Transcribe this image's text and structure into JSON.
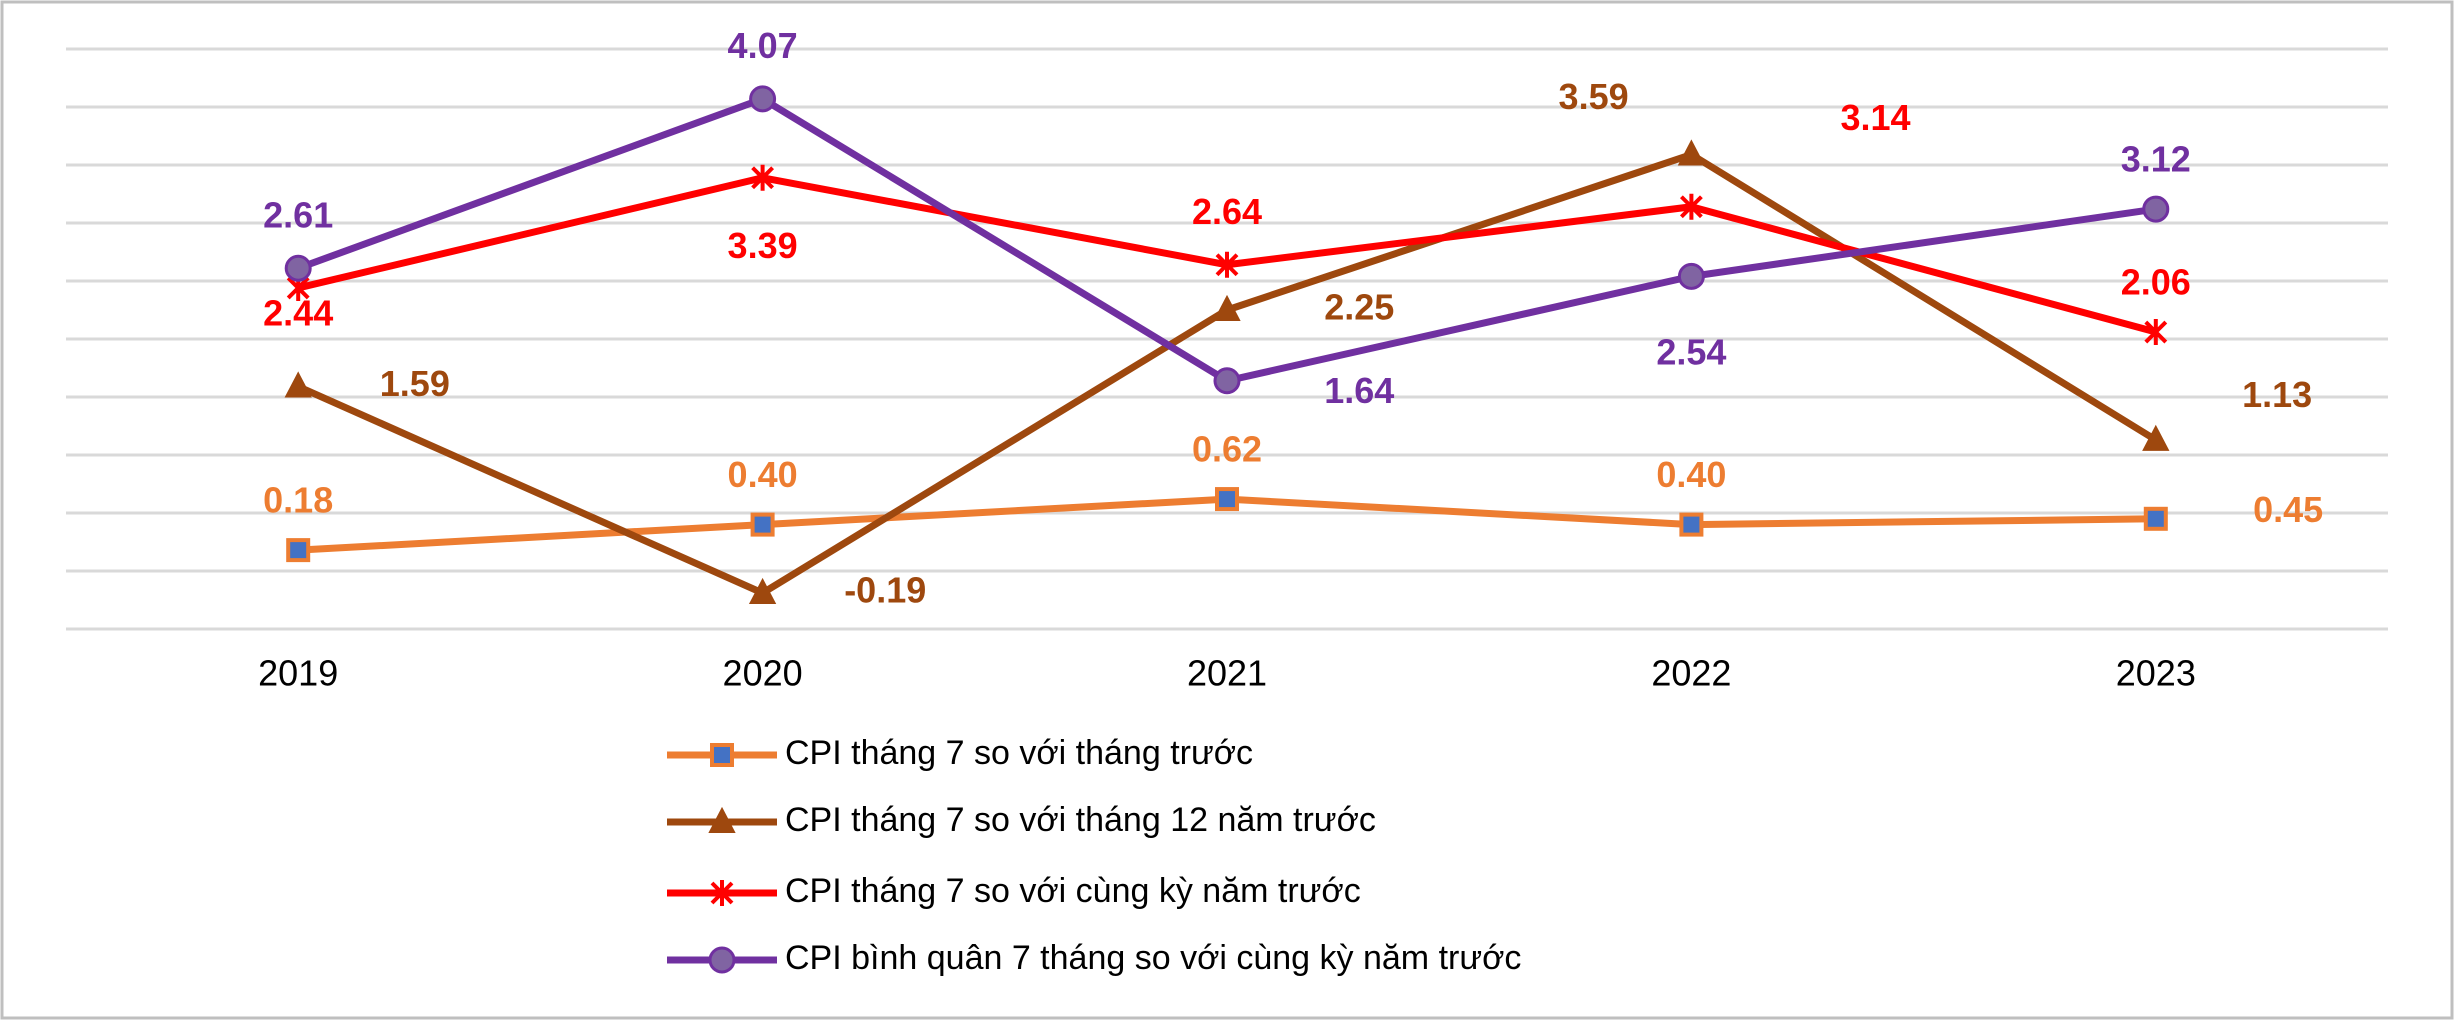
{
  "chart_data": {
    "type": "line",
    "categories": [
      "2019",
      "2020",
      "2021",
      "2022",
      "2023"
    ],
    "series": [
      {
        "name": "CPI tháng 7 so với tháng trước",
        "color": "#ed7d31",
        "marker": "square",
        "values": [
          0.18,
          0.4,
          0.62,
          0.4,
          0.45
        ],
        "value_labels": [
          "0.18",
          "0.40",
          "0.62",
          "0.40",
          "0.45"
        ]
      },
      {
        "name": "CPI tháng 7 so với tháng 12 năm trước",
        "color": "#9e480e",
        "marker": "triangle",
        "values": [
          1.59,
          -0.19,
          2.25,
          3.59,
          1.13
        ]
      },
      {
        "name": "CPI tháng 7 so với cùng kỳ năm trước",
        "color": "#ff0000",
        "marker": "star",
        "values": [
          2.44,
          3.39,
          2.64,
          3.14,
          2.06
        ]
      },
      {
        "name": "CPI bình quân 7 tháng so với cùng kỳ năm trước",
        "color": "#7030a0",
        "marker": "circle",
        "values": [
          2.61,
          4.07,
          1.64,
          2.54,
          3.12
        ]
      }
    ],
    "ylim": [
      -0.5,
      4.5
    ],
    "yticks": [
      -0.5,
      0,
      0.5,
      1,
      1.5,
      2,
      2.5,
      3,
      3.5,
      4,
      4.5
    ],
    "grid": true
  }
}
